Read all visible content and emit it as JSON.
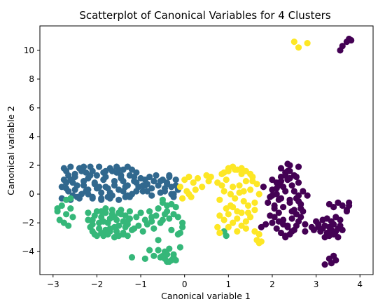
{
  "chart_data": {
    "type": "scatter",
    "title": "Scatterplot of Canonical Variables for 4 Clusters",
    "xlabel": "Canonical variable 1",
    "ylabel": "Canonical variable 2",
    "xlim": [
      -3.3,
      4.3
    ],
    "ylim": [
      -5.6,
      11.7
    ],
    "xticks": [
      -3,
      -2,
      -1,
      0,
      1,
      2,
      3,
      4
    ],
    "yticks": [
      -4,
      -2,
      0,
      2,
      4,
      6,
      8,
      10
    ],
    "grid": false,
    "legend": "none",
    "colors": {
      "cluster_0": "#440154",
      "cluster_1": "#31688e",
      "cluster_2": "#35b779",
      "cluster_3": "#fde725"
    },
    "series": [
      {
        "cluster": 0,
        "color": "#440154",
        "x": [
          1.95,
          2.0,
          2.05,
          2.1,
          2.15,
          2.2,
          2.25,
          2.3,
          2.35,
          2.4,
          2.45,
          2.5,
          2.55,
          2.6,
          2.65,
          2.7,
          1.95,
          2.05,
          2.15,
          2.25,
          2.35,
          2.45,
          2.55,
          2.65,
          2.0,
          2.1,
          2.2,
          2.3,
          2.4,
          2.5,
          2.6,
          2.7,
          1.9,
          2.0,
          2.1,
          2.2,
          2.3,
          2.4,
          2.5,
          2.6,
          2.05,
          2.15,
          2.25,
          2.35,
          2.45,
          2.55,
          2.65,
          2.1,
          2.2,
          2.3,
          2.4,
          2.5,
          2.6,
          2.0,
          2.2,
          2.4,
          2.6,
          2.15,
          2.35,
          2.55,
          2.25,
          2.45,
          2.3,
          2.35,
          2.4,
          1.85,
          1.8,
          2.75,
          2.8,
          1.75,
          2.75,
          3.05,
          3.0,
          2.95,
          2.9,
          3.05,
          3.1,
          3.15,
          3.2,
          3.25,
          3.3,
          3.35,
          3.4,
          3.45,
          3.5,
          3.55,
          3.6,
          3.15,
          3.25,
          3.35,
          3.45,
          3.55,
          3.2,
          3.3,
          3.4,
          3.5,
          3.3,
          3.4,
          3.5,
          3.6,
          3.7,
          3.75,
          3.4,
          3.45,
          3.35,
          3.3,
          3.2,
          3.75,
          3.7,
          3.75,
          3.7,
          3.8,
          3.55,
          3.6
        ],
        "y": [
          -0.2,
          0.3,
          -0.8,
          0.8,
          -1.3,
          1.2,
          -1.8,
          1.5,
          -2.3,
          1.6,
          -2.6,
          1.3,
          -2.2,
          0.8,
          -1.6,
          0.2,
          -1.5,
          -1.0,
          -0.4,
          0.5,
          1.0,
          0.6,
          -0.3,
          -1.0,
          -2.0,
          -2.4,
          -2.7,
          -2.9,
          -2.8,
          -2.5,
          -1.9,
          -1.2,
          -0.6,
          -0.1,
          0.4,
          0.9,
          1.3,
          1.1,
          0.2,
          -0.5,
          -1.6,
          -1.9,
          -2.1,
          -2.2,
          -1.7,
          -1.4,
          -0.7,
          0.0,
          -0.3,
          0.2,
          -0.6,
          -1.1,
          -0.1,
          1.0,
          1.8,
          2.0,
          1.9,
          0.6,
          1.6,
          1.2,
          -0.9,
          -1.2,
          -3.0,
          2.1,
          -0.4,
          -2.1,
          0.5,
          -2.1,
          -0.1,
          -2.3,
          -2.6,
          -2.3,
          -1.9,
          -2.5,
          -2.3,
          -2.1,
          -2.6,
          -2.4,
          -2.2,
          -2.7,
          -2.3,
          -2.5,
          -2.1,
          -2.6,
          -2.4,
          -2.2,
          -2.5,
          -1.8,
          -1.7,
          -1.9,
          -1.6,
          -1.8,
          -3.0,
          -2.9,
          -2.8,
          -3.0,
          -0.7,
          -0.9,
          -0.6,
          -0.8,
          -1.1,
          -0.6,
          -4.3,
          -4.6,
          -4.8,
          -4.5,
          -4.9,
          -0.8,
          -1.2,
          10.8,
          10.6,
          10.7,
          10.0,
          10.3
        ],
        "points_note": ""
      },
      {
        "cluster": 1,
        "color": "#31688e",
        "x": [
          -2.8,
          -2.75,
          -2.7,
          -2.65,
          -2.6,
          -2.55,
          -2.5,
          -2.45,
          -2.4,
          -2.35,
          -2.3,
          -2.25,
          -2.2,
          -2.15,
          -2.1,
          -2.05,
          -2.0,
          -1.95,
          -1.9,
          -1.85,
          -1.8,
          -1.75,
          -1.7,
          -1.65,
          -1.6,
          -1.55,
          -1.5,
          -1.45,
          -1.4,
          -1.35,
          -1.3,
          -1.25,
          -1.2,
          -1.15,
          -1.1,
          -1.05,
          -2.8,
          -2.7,
          -2.6,
          -2.5,
          -2.4,
          -2.3,
          -2.2,
          -2.1,
          -2.0,
          -1.9,
          -1.8,
          -1.7,
          -1.6,
          -1.5,
          -1.4,
          -1.3,
          -1.2,
          -1.1,
          -2.75,
          -2.65,
          -2.55,
          -2.45,
          -2.35,
          -2.25,
          -2.15,
          -2.05,
          -1.95,
          -1.85,
          -1.75,
          -1.65,
          -1.55,
          -1.45,
          -1.35,
          -1.25,
          -1.15,
          -2.7,
          -2.5,
          -2.3,
          -2.1,
          -1.9,
          -1.7,
          -1.5,
          -1.3,
          -1.1,
          -2.6,
          -2.2,
          -1.8,
          -1.4,
          -1.0,
          -0.95,
          -0.9,
          -0.85,
          -0.8,
          -0.75,
          -0.7,
          -0.65,
          -0.6,
          -0.55,
          -0.5,
          -0.45,
          -0.4,
          -0.35,
          -0.3,
          -0.25,
          -0.2,
          -0.15,
          -0.95,
          -0.85,
          -0.75,
          -0.55,
          -0.45,
          -0.35,
          -0.25,
          -0.9,
          -0.4,
          -0.3,
          -0.2
        ],
        "y": [
          0.5,
          1.0,
          1.6,
          0.2,
          1.9,
          -0.1,
          1.2,
          0.6,
          1.8,
          0.0,
          0.9,
          1.5,
          0.3,
          1.9,
          -0.2,
          0.7,
          1.3,
          1.9,
          0.1,
          1.0,
          1.6,
          0.4,
          1.8,
          -0.1,
          0.9,
          1.5,
          0.3,
          1.1,
          1.7,
          -0.2,
          0.6,
          1.3,
          0.0,
          0.9,
          1.5,
          0.5,
          -0.3,
          0.8,
          -0.4,
          1.4,
          -0.3,
          1.9,
          1.1,
          -0.3,
          0.4,
          -0.4,
          1.2,
          -0.3,
          0.6,
          -0.4,
          0.9,
          1.9,
          1.7,
          0.2,
          1.8,
          1.3,
          0.8,
          -0.2,
          1.6,
          0.2,
          1.3,
          0.8,
          0.5,
          1.5,
          -0.2,
          1.6,
          1.9,
          1.3,
          0.5,
          -0.2,
          1.2,
          0.4,
          0.3,
          0.6,
          1.6,
          -0.3,
          0.1,
          1.7,
          -0.1,
          0.8,
          1.0,
          0.0,
          0.5,
          0.2,
          1.1,
          0.6,
          1.0,
          0.2,
          1.2,
          0.4,
          0.9,
          1.3,
          0.6,
          0.1,
          1.0,
          0.4,
          0.8,
          1.3,
          0.5,
          0.0,
          1.0,
          0.3,
          0.2,
          0.7,
          -0.1,
          0.9,
          0.2,
          1.2,
          -0.2,
          0.6,
          0.7,
          0.0,
          0.6
        ]
      },
      {
        "cluster": 2,
        "color": "#35b779",
        "x": [
          -2.9,
          -2.85,
          -2.8,
          -2.75,
          -2.7,
          -2.65,
          -2.6,
          -2.55,
          -2.9,
          -2.7,
          -2.6,
          -2.2,
          -2.15,
          -2.1,
          -2.05,
          -2.0,
          -1.95,
          -1.9,
          -1.85,
          -1.8,
          -1.75,
          -1.7,
          -1.65,
          -1.6,
          -1.55,
          -1.5,
          -1.45,
          -1.4,
          -1.35,
          -1.3,
          -1.25,
          -1.2,
          -2.1,
          -2.0,
          -1.9,
          -1.8,
          -1.7,
          -1.6,
          -1.5,
          -1.4,
          -1.3,
          -2.05,
          -1.95,
          -1.85,
          -1.75,
          -1.65,
          -1.55,
          -1.45,
          -1.35,
          -1.25,
          -2.2,
          -2.1,
          -1.9,
          -1.7,
          -1.5,
          -1.3,
          -1.8,
          -1.6,
          -1.4,
          -1.15,
          -1.1,
          -1.05,
          -1.0,
          -0.95,
          -0.9,
          -0.85,
          -0.8,
          -0.75,
          -0.7,
          -0.65,
          -0.6,
          -0.55,
          -0.5,
          -0.45,
          -0.4,
          -0.35,
          -0.3,
          -0.25,
          -0.2,
          -0.15,
          -0.1,
          -0.05,
          -0.6,
          -0.5,
          -0.4,
          -0.3,
          -0.7,
          -0.45,
          -0.35,
          -0.25,
          -0.55,
          -0.4,
          -0.2,
          -0.8,
          -0.9,
          -0.5,
          -0.3,
          -0.45,
          -0.35,
          -0.25,
          -0.6,
          -0.4,
          -0.1,
          -1.2,
          -0.75,
          -0.5,
          0.9,
          0.95,
          -0.05,
          -0.15
        ],
        "y": [
          -1.2,
          -1.8,
          -0.8,
          -2.0,
          -1.4,
          -2.2,
          -1.0,
          -1.6,
          -1.0,
          -0.4,
          -0.3,
          -1.3,
          -2.3,
          -1.8,
          -2.8,
          -1.2,
          -2.4,
          -1.6,
          -2.9,
          -1.0,
          -2.0,
          -2.6,
          -1.4,
          -3.0,
          -1.8,
          -2.2,
          -1.1,
          -2.7,
          -1.5,
          -2.1,
          -1.2,
          -2.5,
          -2.6,
          -2.9,
          -1.2,
          -2.5,
          -1.7,
          -2.3,
          -1.3,
          -2.8,
          -1.9,
          -1.5,
          -2.0,
          -1.9,
          -2.8,
          -1.1,
          -2.6,
          -1.4,
          -2.3,
          -1.7,
          -1.8,
          -2.1,
          -2.7,
          -2.4,
          -2.9,
          -2.9,
          -1.3,
          -1.6,
          -1.9,
          -2.4,
          -1.6,
          -2.2,
          -1.3,
          -2.6,
          -1.8,
          -2.1,
          -1.2,
          -1.9,
          -2.4,
          -1.5,
          -1.0,
          -2.0,
          -0.6,
          -1.4,
          -0.8,
          -1.7,
          -0.7,
          -1.4,
          -0.9,
          -1.6,
          -2.7,
          -2.3,
          -3.2,
          -0.4,
          -1.2,
          -2.5,
          -4.3,
          -4.5,
          -3.8,
          -4.2,
          -4.4,
          -4.7,
          -4.6,
          -3.9,
          -4.5,
          -4.3,
          -4.6,
          -4.0,
          -4.7,
          -4.4,
          -3.9,
          -4.2,
          -3.7,
          -4.4,
          -1.6,
          -1.8,
          -2.6,
          -2.9,
          -2.0,
          -2.8
        ]
      },
      {
        "cluster": 3,
        "color": "#fde725",
        "x": [
          -0.1,
          0.0,
          0.05,
          0.1,
          0.15,
          0.2,
          0.3,
          0.4,
          0.5,
          0.55,
          0.6,
          -0.05,
          0.1,
          0.25,
          0.75,
          0.8,
          0.85,
          0.9,
          0.95,
          1.0,
          1.05,
          1.1,
          1.15,
          1.2,
          1.25,
          1.3,
          1.35,
          1.4,
          1.45,
          1.5,
          1.55,
          1.6,
          1.65,
          1.7,
          0.8,
          0.9,
          1.0,
          1.1,
          1.2,
          1.3,
          1.4,
          1.5,
          1.6,
          0.85,
          0.95,
          1.05,
          1.15,
          1.25,
          1.35,
          1.45,
          1.55,
          0.9,
          1.0,
          1.1,
          1.2,
          1.3,
          1.4,
          1.5,
          1.0,
          1.2,
          1.4,
          1.1,
          1.3,
          1.6,
          1.7,
          1.75,
          0.75,
          0.8,
          1.65,
          1.7,
          2.5,
          2.6,
          2.8
        ],
        "y": [
          0.5,
          1.0,
          0.2,
          1.2,
          -0.2,
          0.8,
          1.1,
          0.5,
          1.3,
          0.9,
          1.2,
          -0.3,
          0.0,
          0.3,
          0.8,
          -0.4,
          1.4,
          0.2,
          -1.0,
          1.6,
          -0.8,
          0.5,
          1.7,
          -1.2,
          0.1,
          1.4,
          -0.5,
          0.9,
          -1.3,
          0.3,
          1.2,
          -0.6,
          0.7,
          0.0,
          -1.5,
          -1.8,
          -1.4,
          -2.0,
          -1.7,
          -2.2,
          -1.9,
          -1.6,
          -1.1,
          0.6,
          1.0,
          0.0,
          -0.3,
          0.6,
          0.2,
          -0.8,
          0.9,
          1.5,
          1.8,
          1.9,
          1.7,
          1.8,
          1.6,
          1.4,
          -2.3,
          -2.6,
          -2.4,
          -0.9,
          -1.3,
          -2.6,
          -2.8,
          -3.3,
          -2.3,
          -2.7,
          -3.2,
          -3.4,
          10.6,
          10.2,
          10.5
        ]
      }
    ]
  }
}
